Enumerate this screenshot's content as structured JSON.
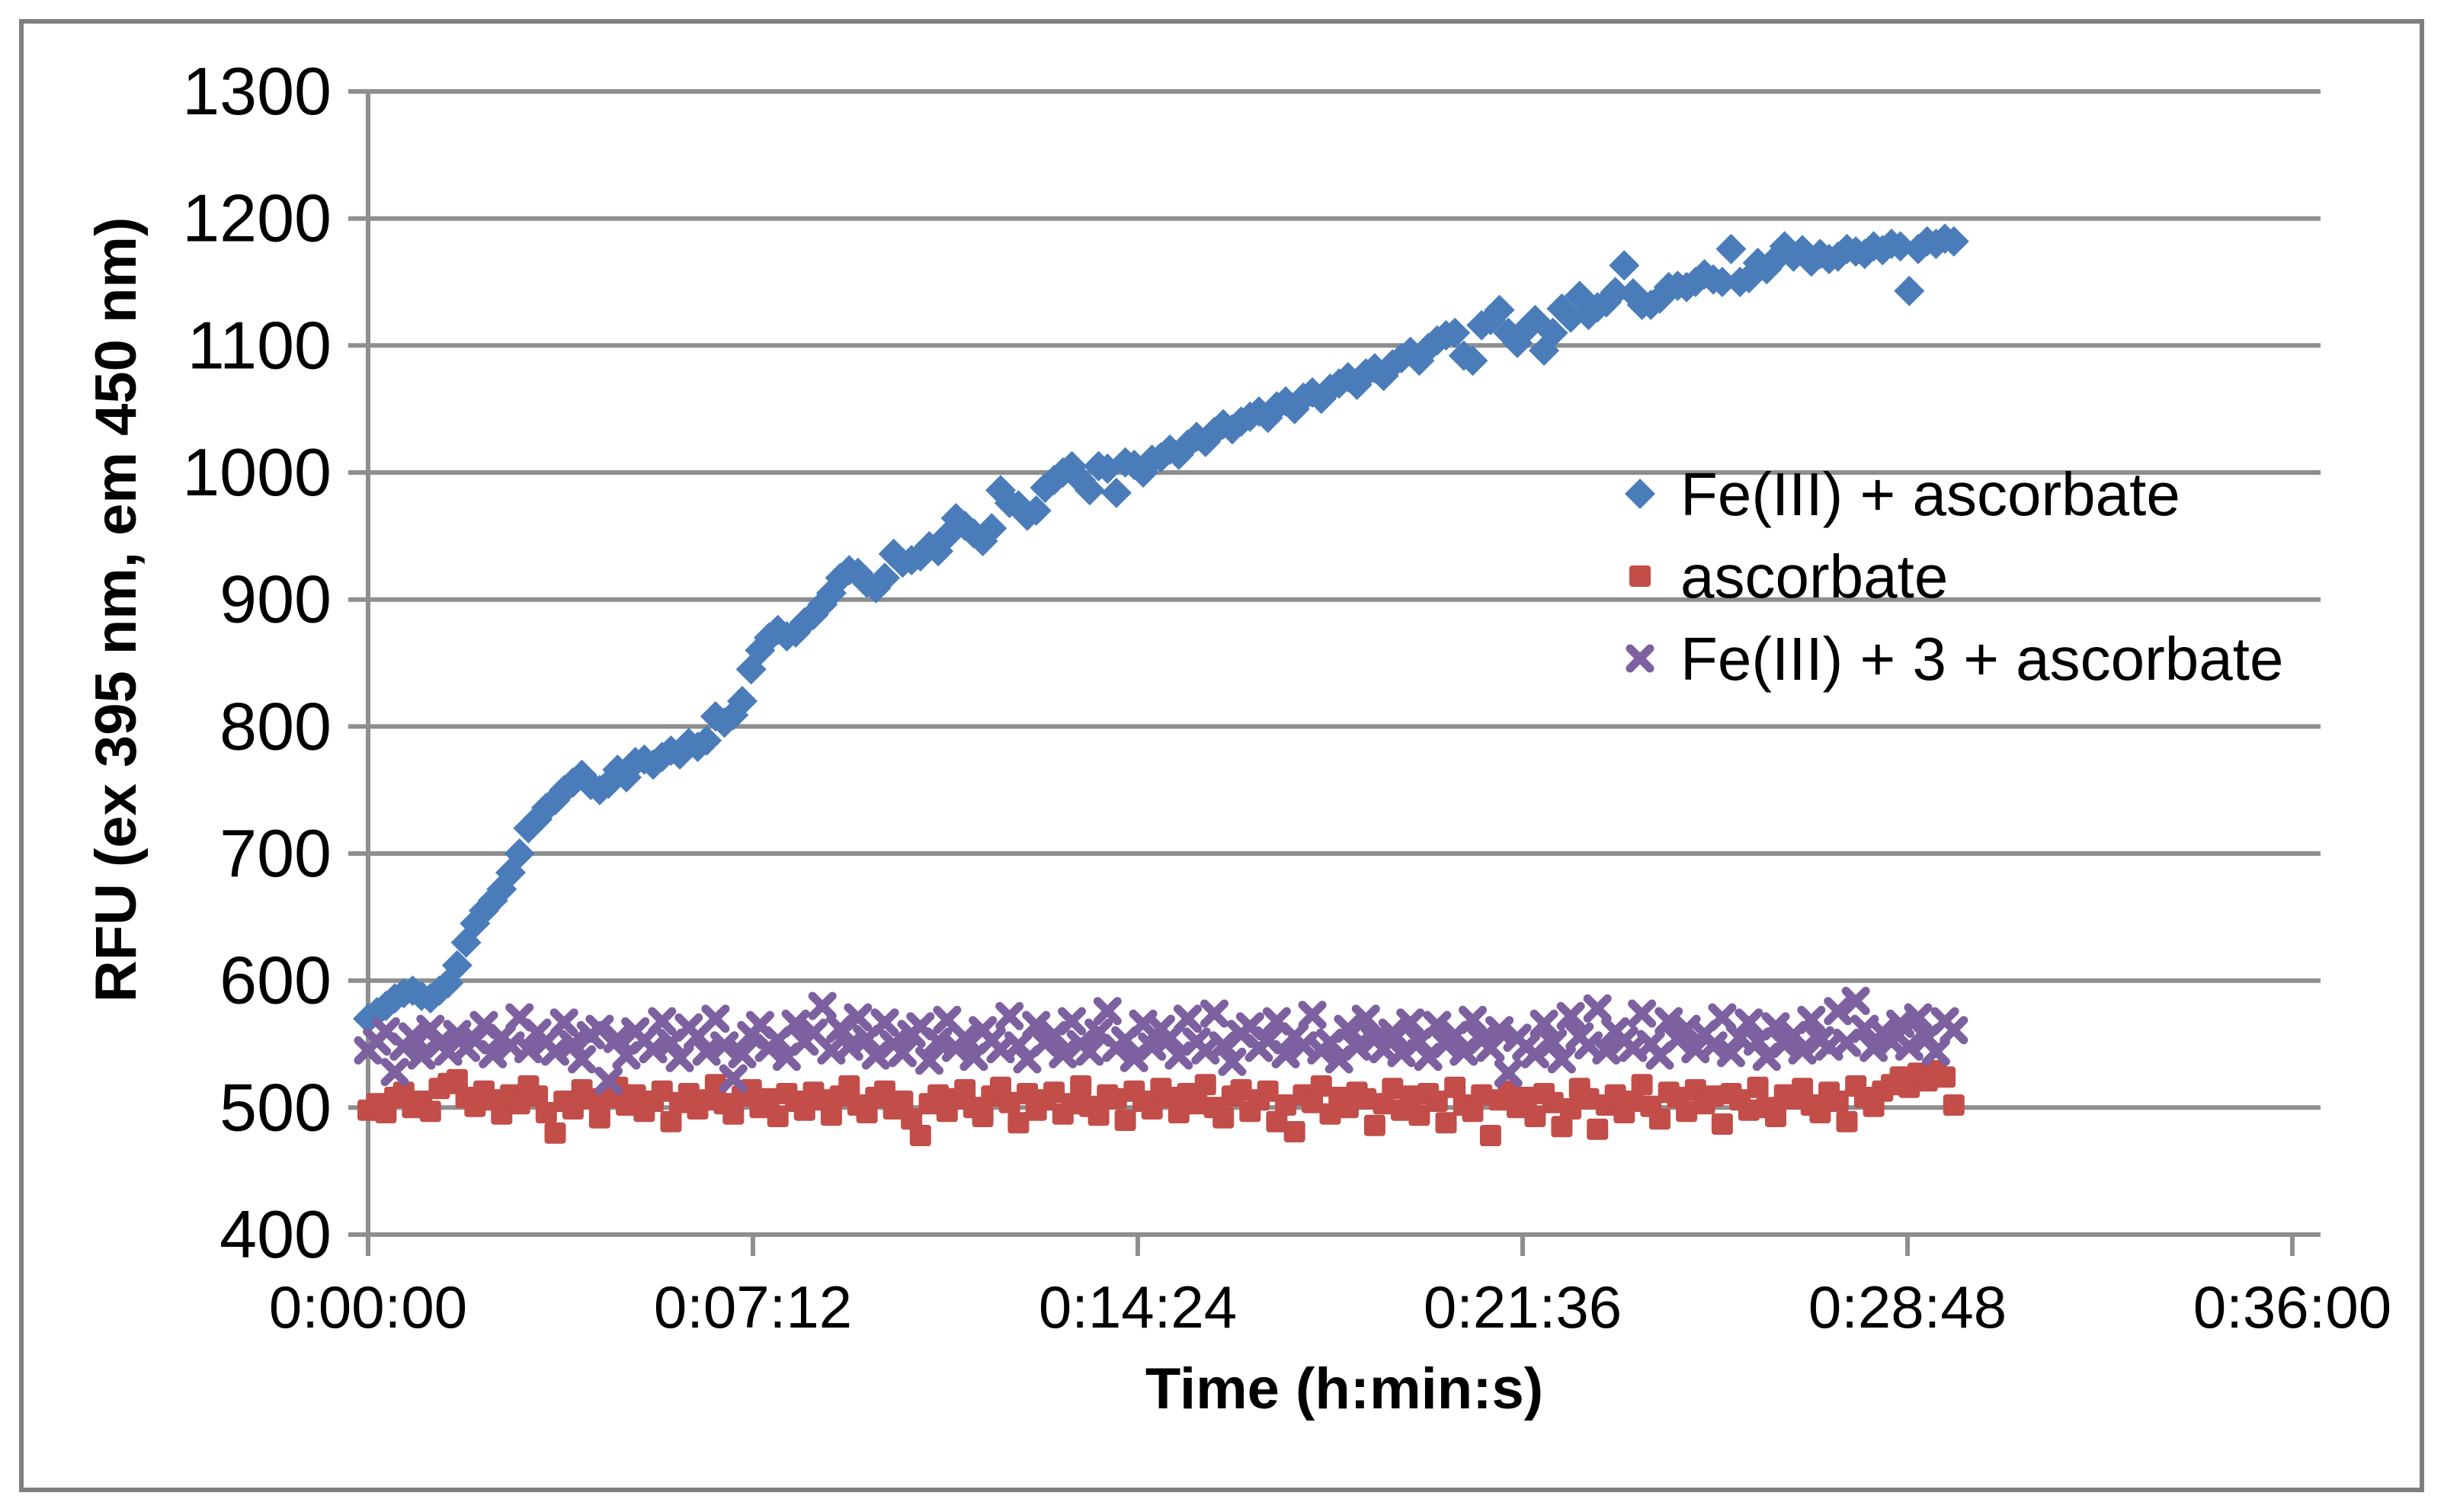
{
  "figure": {
    "background_color": "#ffffff",
    "border_color": "#7f7f7f",
    "description": "Scatter chart of fluorescence (RFU) versus time for three samples"
  },
  "chart_data": {
    "type": "scatter",
    "title": "",
    "xlabel": "Time (h:min:s)",
    "ylabel": "RFU (ex 395 nm, em 450 nm)",
    "xlim_seconds": [
      0,
      2160
    ],
    "ylim": [
      400,
      1300
    ],
    "grid": "horizontal",
    "grid_color": "#8e8e8e",
    "axis_color": "#8e8e8e",
    "legend_position": "inside-right",
    "yticks": [
      400,
      500,
      600,
      700,
      800,
      900,
      1000,
      1100,
      1200,
      1300
    ],
    "xticks": [
      {
        "seconds": 0,
        "label": "0:00:00"
      },
      {
        "seconds": 432,
        "label": "0:07:12"
      },
      {
        "seconds": 864,
        "label": "0:14:24"
      },
      {
        "seconds": 1296,
        "label": "0:21:36"
      },
      {
        "seconds": 1728,
        "label": "0:28:48"
      },
      {
        "seconds": 2160,
        "label": "0:36:00"
      }
    ],
    "sample_start_seconds": 0,
    "sample_interval_seconds": 10,
    "series": [
      {
        "name": "Fe(III) + ascorbate",
        "marker": "diamond",
        "color": "#4a7cba",
        "values": [
          570,
          575,
          580,
          586,
          590,
          592,
          588,
          586,
          592,
          598,
          612,
          630,
          645,
          655,
          663,
          672,
          685,
          700,
          720,
          727,
          736,
          742,
          750,
          756,
          762,
          754,
          750,
          755,
          766,
          760,
          772,
          774,
          770,
          776,
          781,
          778,
          787,
          784,
          789,
          808,
          803,
          809,
          820,
          845,
          860,
          870,
          876,
          871,
          874,
          882,
          888,
          896,
          905,
          917,
          923,
          921,
          913,
          909,
          917,
          936,
          929,
          931,
          934,
          942,
          938,
          950,
          964,
          958,
          952,
          946,
          956,
          986,
          976,
          974,
          966,
          970,
          988,
          994,
          1000,
          1005,
          994,
          986,
          1005,
          1003,
          984,
          1008,
          1006,
          1000,
          1010,
          1012,
          1018,
          1014,
          1022,
          1028,
          1024,
          1032,
          1038,
          1034,
          1040,
          1044,
          1048,
          1043,
          1052,
          1056,
          1050,
          1059,
          1063,
          1058,
          1066,
          1070,
          1075,
          1069,
          1078,
          1082,
          1076,
          1085,
          1090,
          1095,
          1088,
          1098,
          1104,
          1108,
          1110,
          1092,
          1088,
          1116,
          1120,
          1128,
          1110,
          1102,
          1113,
          1120,
          1096,
          1110,
          1129,
          1122,
          1139,
          1124,
          1130,
          1134,
          1142,
          1163,
          1141,
          1132,
          1132,
          1137,
          1146,
          1147,
          1146,
          1150,
          1156,
          1152,
          1150,
          1176,
          1150,
          1153,
          1165,
          1160,
          1168,
          1178,
          1170,
          1175,
          1166,
          1172,
          1168,
          1170,
          1176,
          1174,
          1172,
          1178,
          1175,
          1180,
          1178,
          1143,
          1176,
          1182,
          1180,
          1184,
          1182
        ]
      },
      {
        "name": "ascorbate",
        "marker": "square",
        "color": "#c24d49",
        "values": [
          498,
          503,
          496,
          508,
          512,
          500,
          505,
          497,
          515,
          519,
          522,
          508,
          501,
          513,
          506,
          495,
          510,
          503,
          517,
          509,
          496,
          480,
          505,
          499,
          514,
          507,
          492,
          508,
          516,
          502,
          510,
          497,
          505,
          513,
          489,
          504,
          511,
          499,
          506,
          518,
          503,
          495,
          509,
          514,
          500,
          507,
          493,
          511,
          505,
          498,
          512,
          506,
          494,
          509,
          517,
          502,
          496,
          508,
          513,
          499,
          505,
          491,
          478,
          503,
          510,
          497,
          507,
          514,
          500,
          493,
          509,
          516,
          504,
          488,
          511,
          498,
          506,
          512,
          495,
          503,
          517,
          501,
          494,
          510,
          507,
          490,
          513,
          505,
          499,
          515,
          508,
          496,
          511,
          503,
          518,
          500,
          492,
          509,
          514,
          497,
          506,
          513,
          489,
          502,
          481,
          510,
          504,
          517,
          495,
          508,
          500,
          512,
          507,
          486,
          503,
          515,
          498,
          509,
          494,
          511,
          505,
          488,
          516,
          502,
          497,
          510,
          478,
          506,
          513,
          500,
          508,
          493,
          511,
          504,
          485,
          499,
          515,
          507,
          483,
          502,
          510,
          496,
          505,
          518,
          501,
          491,
          512,
          508,
          497,
          514,
          503,
          509,
          487,
          511,
          506,
          498,
          516,
          500,
          493,
          510,
          507,
          515,
          502,
          496,
          512,
          505,
          489,
          517,
          508,
          501,
          513,
          518,
          524,
          516,
          527,
          521,
          529,
          524,
          502
        ]
      },
      {
        "name": "Fe(III) + 3 + ascorbate",
        "marker": "x",
        "color": "#7d60a0",
        "values": [
          545,
          552,
          560,
          528,
          548,
          556,
          541,
          562,
          550,
          544,
          558,
          547,
          553,
          565,
          542,
          555,
          549,
          571,
          546,
          559,
          552,
          544,
          567,
          550,
          538,
          557,
          562,
          521,
          554,
          541,
          560,
          553,
          546,
          568,
          551,
          539,
          563,
          556,
          544,
          570,
          549,
          523,
          542,
          557,
          565,
          547,
          553,
          540,
          566,
          552,
          559,
          580,
          545,
          562,
          548,
          571,
          554,
          541,
          567,
          550,
          543,
          558,
          564,
          537,
          552,
          569,
          547,
          555,
          540,
          561,
          553,
          546,
          572,
          549,
          538,
          565,
          551,
          557,
          542,
          568,
          550,
          544,
          559,
          576,
          547,
          553,
          539,
          566,
          548,
          562,
          555,
          541,
          570,
          552,
          545,
          574,
          549,
          536,
          558,
          564,
          547,
          553,
          568,
          542,
          556,
          549,
          573,
          545,
          551,
          538,
          562,
          548,
          570,
          554,
          546,
          559,
          543,
          567,
          552,
          540,
          565,
          550,
          557,
          544,
          569,
          553,
          547,
          561,
          527,
          555,
          548,
          542,
          566,
          551,
          538,
          572,
          556,
          549,
          578,
          545,
          560,
          553,
          547,
          574,
          550,
          541,
          568,
          554,
          562,
          546,
          558,
          549,
          571,
          543,
          555,
          567,
          552,
          540,
          564,
          550,
          557,
          545,
          569,
          553,
          548,
          576,
          551,
          584,
          562,
          547,
          559,
          552,
          566,
          548,
          571,
          555,
          544,
          568,
          561
        ]
      }
    ]
  }
}
